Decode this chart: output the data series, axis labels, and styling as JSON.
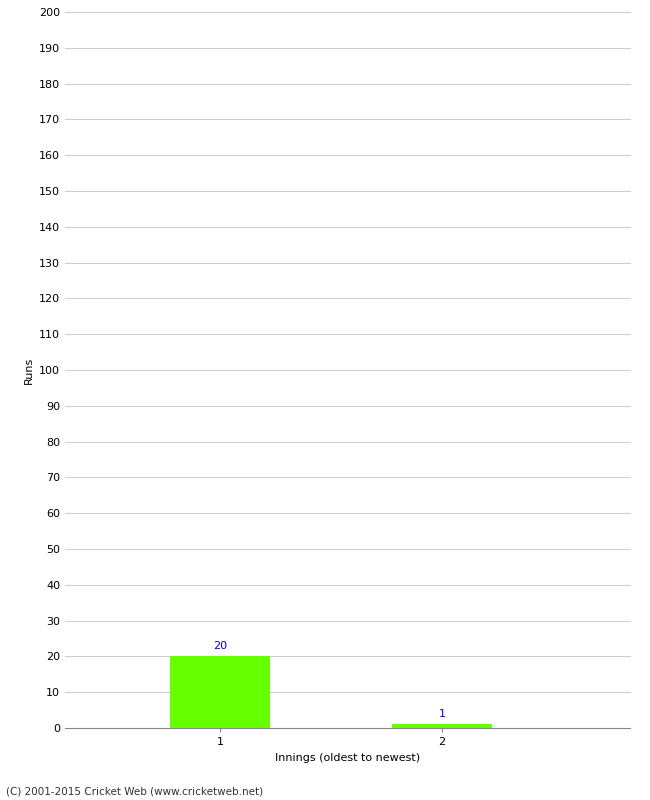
{
  "xlabel": "Innings (oldest to newest)",
  "ylabel": "Runs",
  "categories": [
    1,
    2
  ],
  "values": [
    20,
    1
  ],
  "bar_colors": [
    "#66ff00",
    "#66ff00"
  ],
  "value_colors": [
    "#0000cc",
    "#0000cc"
  ],
  "ylim": [
    0,
    200
  ],
  "ytick_step": 10,
  "background_color": "#ffffff",
  "grid_color": "#cccccc",
  "footer": "(C) 2001-2015 Cricket Web (www.cricketweb.net)"
}
